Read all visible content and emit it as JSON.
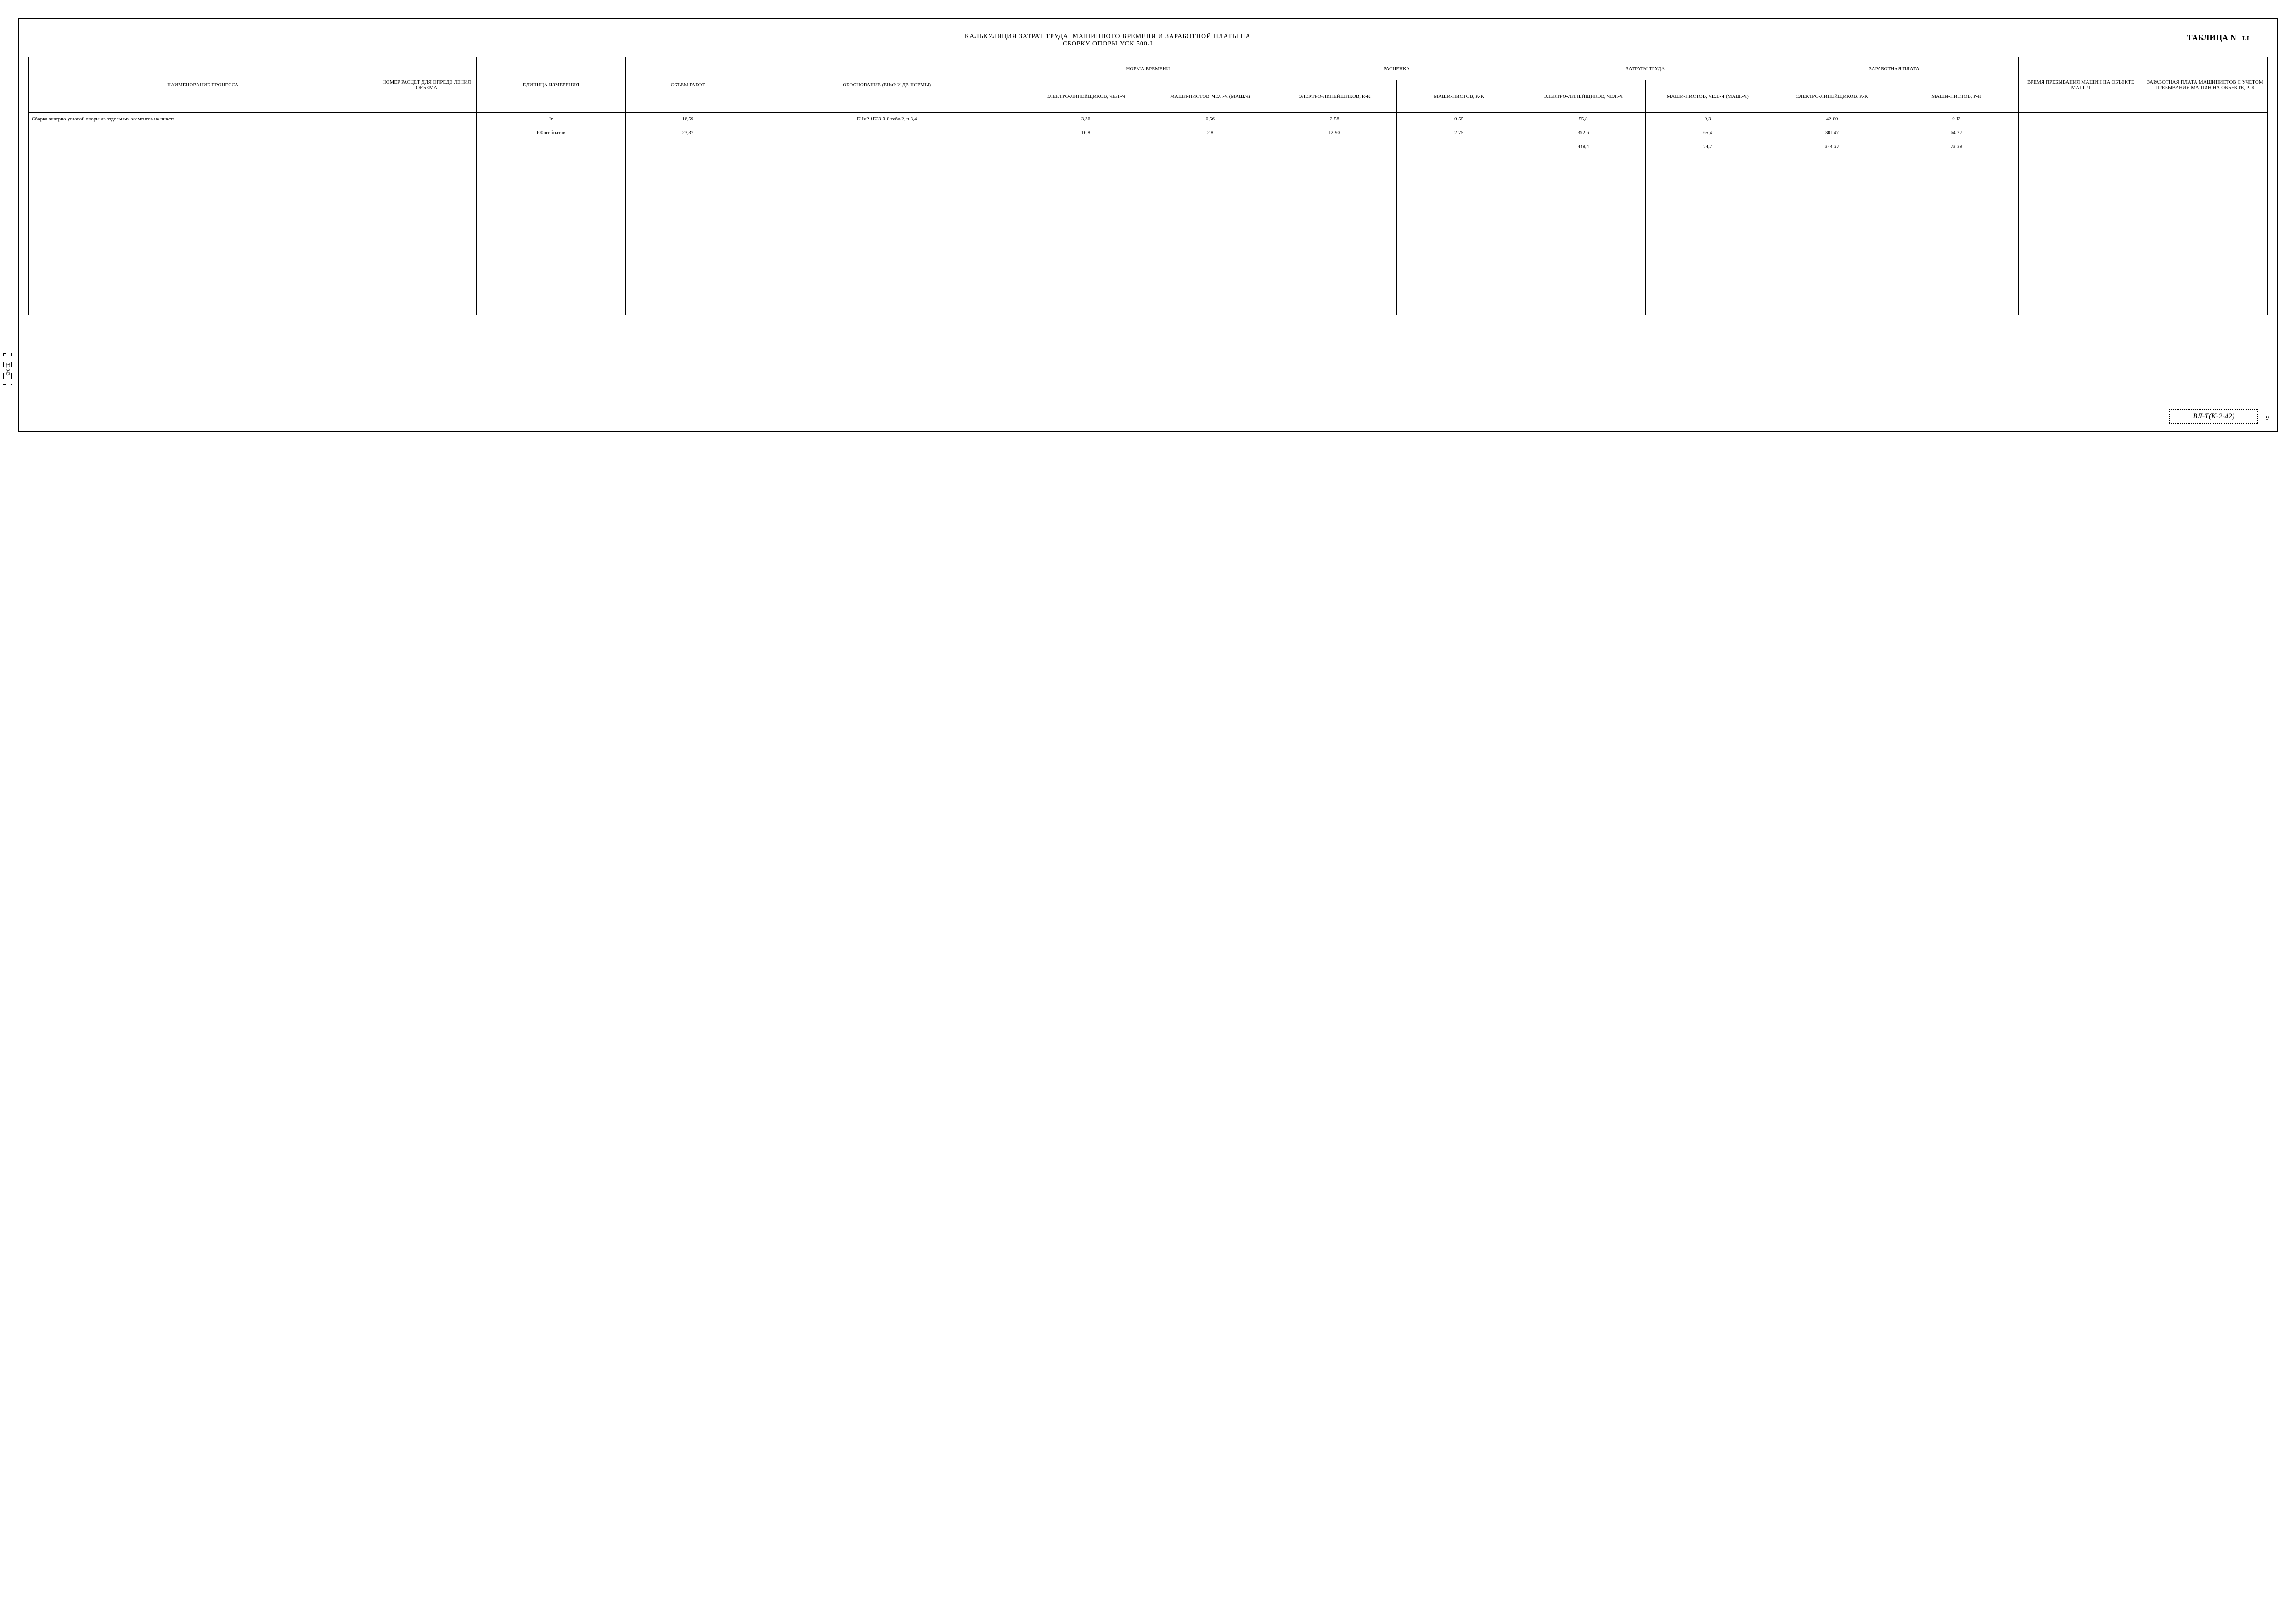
{
  "title": {
    "line1": "КАЛЬКУЛЯЦИЯ ЗАТРАТ ТРУДА, МАШИННОГО ВРЕМЕНИ И ЗАРАБОТНОЙ ПЛАТЫ НА",
    "line2": "СБОРКУ ОПОРЫ УСК 500-I"
  },
  "table_label": "ТАБЛИЦА N",
  "table_number": "I-I",
  "headers": {
    "process": "НАИМЕНОВАНИЕ ПРОЦЕССА",
    "nomer": "НОМЕР РАСЦЕТ ДЛЯ ОПРЕДЕ ЛЕНИЯ ОБЪЕМА",
    "unit": "ЕДИНИЦА ИЗМЕРЕНИЯ",
    "volume": "ОБЪЕМ РАБОТ",
    "basis": "ОБОСНОВАНИЕ (ЕНиР И ДР. НОРМЫ)",
    "norma": "НОРМА ВРЕМЕНИ",
    "rascenka": "РАСЦЕНКА",
    "zatraty": "ЗАТРАТЫ ТРУДА",
    "zarabotnaya": "ЗАРАБОТНАЯ ПЛАТА",
    "vremya": "ВРЕМЯ ПРЕБЫВАНИЯ МАШИН НА ОБЪЕКТЕ МАШ. Ч",
    "zarab_mash": "ЗАРАБОТНАЯ ПЛАТА МАШИНИСТОВ С УЧЕТОМ ПРЕБЫВАНИЯ МАШИН НА ОБЪЕКТЕ, Р.-К",
    "sub_electro_chel": "ЭЛЕКТРО-ЛИНЕЙЩИКОВ, ЧЕЛ.-Ч",
    "sub_mash_chel": "МАШИ-НИСТОВ, ЧЕЛ.-Ч (МАШ.Ч)",
    "sub_electro_rk": "ЭЛЕКТРО-ЛИНЕЙЩИКОВ, Р.-К",
    "sub_mash_rk": "МАШИ-НИСТОВ, Р.-К",
    "sub_electro_chel2": "ЭЛЕКТРО-ЛИНЕЙЩИКОВ, ЧЕЛ.-Ч",
    "sub_mash_chel2": "МАШИ-НИСТОВ, ЧЕЛ.-Ч (МАШ.-Ч)",
    "sub_electro_rk2": "ЭЛЕКТРО-ЛИНЕЙЩИКОВ, Р.-К",
    "sub_mash_rk2": "МАШИ-НИСТОВ, Р-К"
  },
  "rows": [
    {
      "process": "Сборка анкерно-угловой опоры из отдельных элементов на пикете",
      "unit": "Iт",
      "volume": "16,59",
      "basis": "ЕНиР §Е23-3-8 табл.2, п.3,4",
      "c1": "3,36",
      "c2": "0,56",
      "c3": "2-58",
      "c4": "0-55",
      "c5": "55,8",
      "c6": "9,3",
      "c7": "42-80",
      "c8": "9-I2"
    },
    {
      "process": "",
      "unit": "I00шт болтов",
      "volume": "23,37",
      "basis": "",
      "c1": "16,8",
      "c2": "2,8",
      "c3": "I2-90",
      "c4": "2-75",
      "c5": "392,6",
      "c6": "65,4",
      "c7": "30I-47",
      "c8": "64-27"
    },
    {
      "process": "",
      "unit": "",
      "volume": "",
      "basis": "",
      "c1": "",
      "c2": "",
      "c3": "",
      "c4": "",
      "c5": "448,4",
      "c6": "74,7",
      "c7": "344-27",
      "c8": "73-39"
    }
  ],
  "footer_code": "ВЛ-Т(К-2-42)",
  "page_number": "9",
  "side_text": "33.943",
  "colors": {
    "bg": "#ffffff",
    "ink": "#000000"
  }
}
